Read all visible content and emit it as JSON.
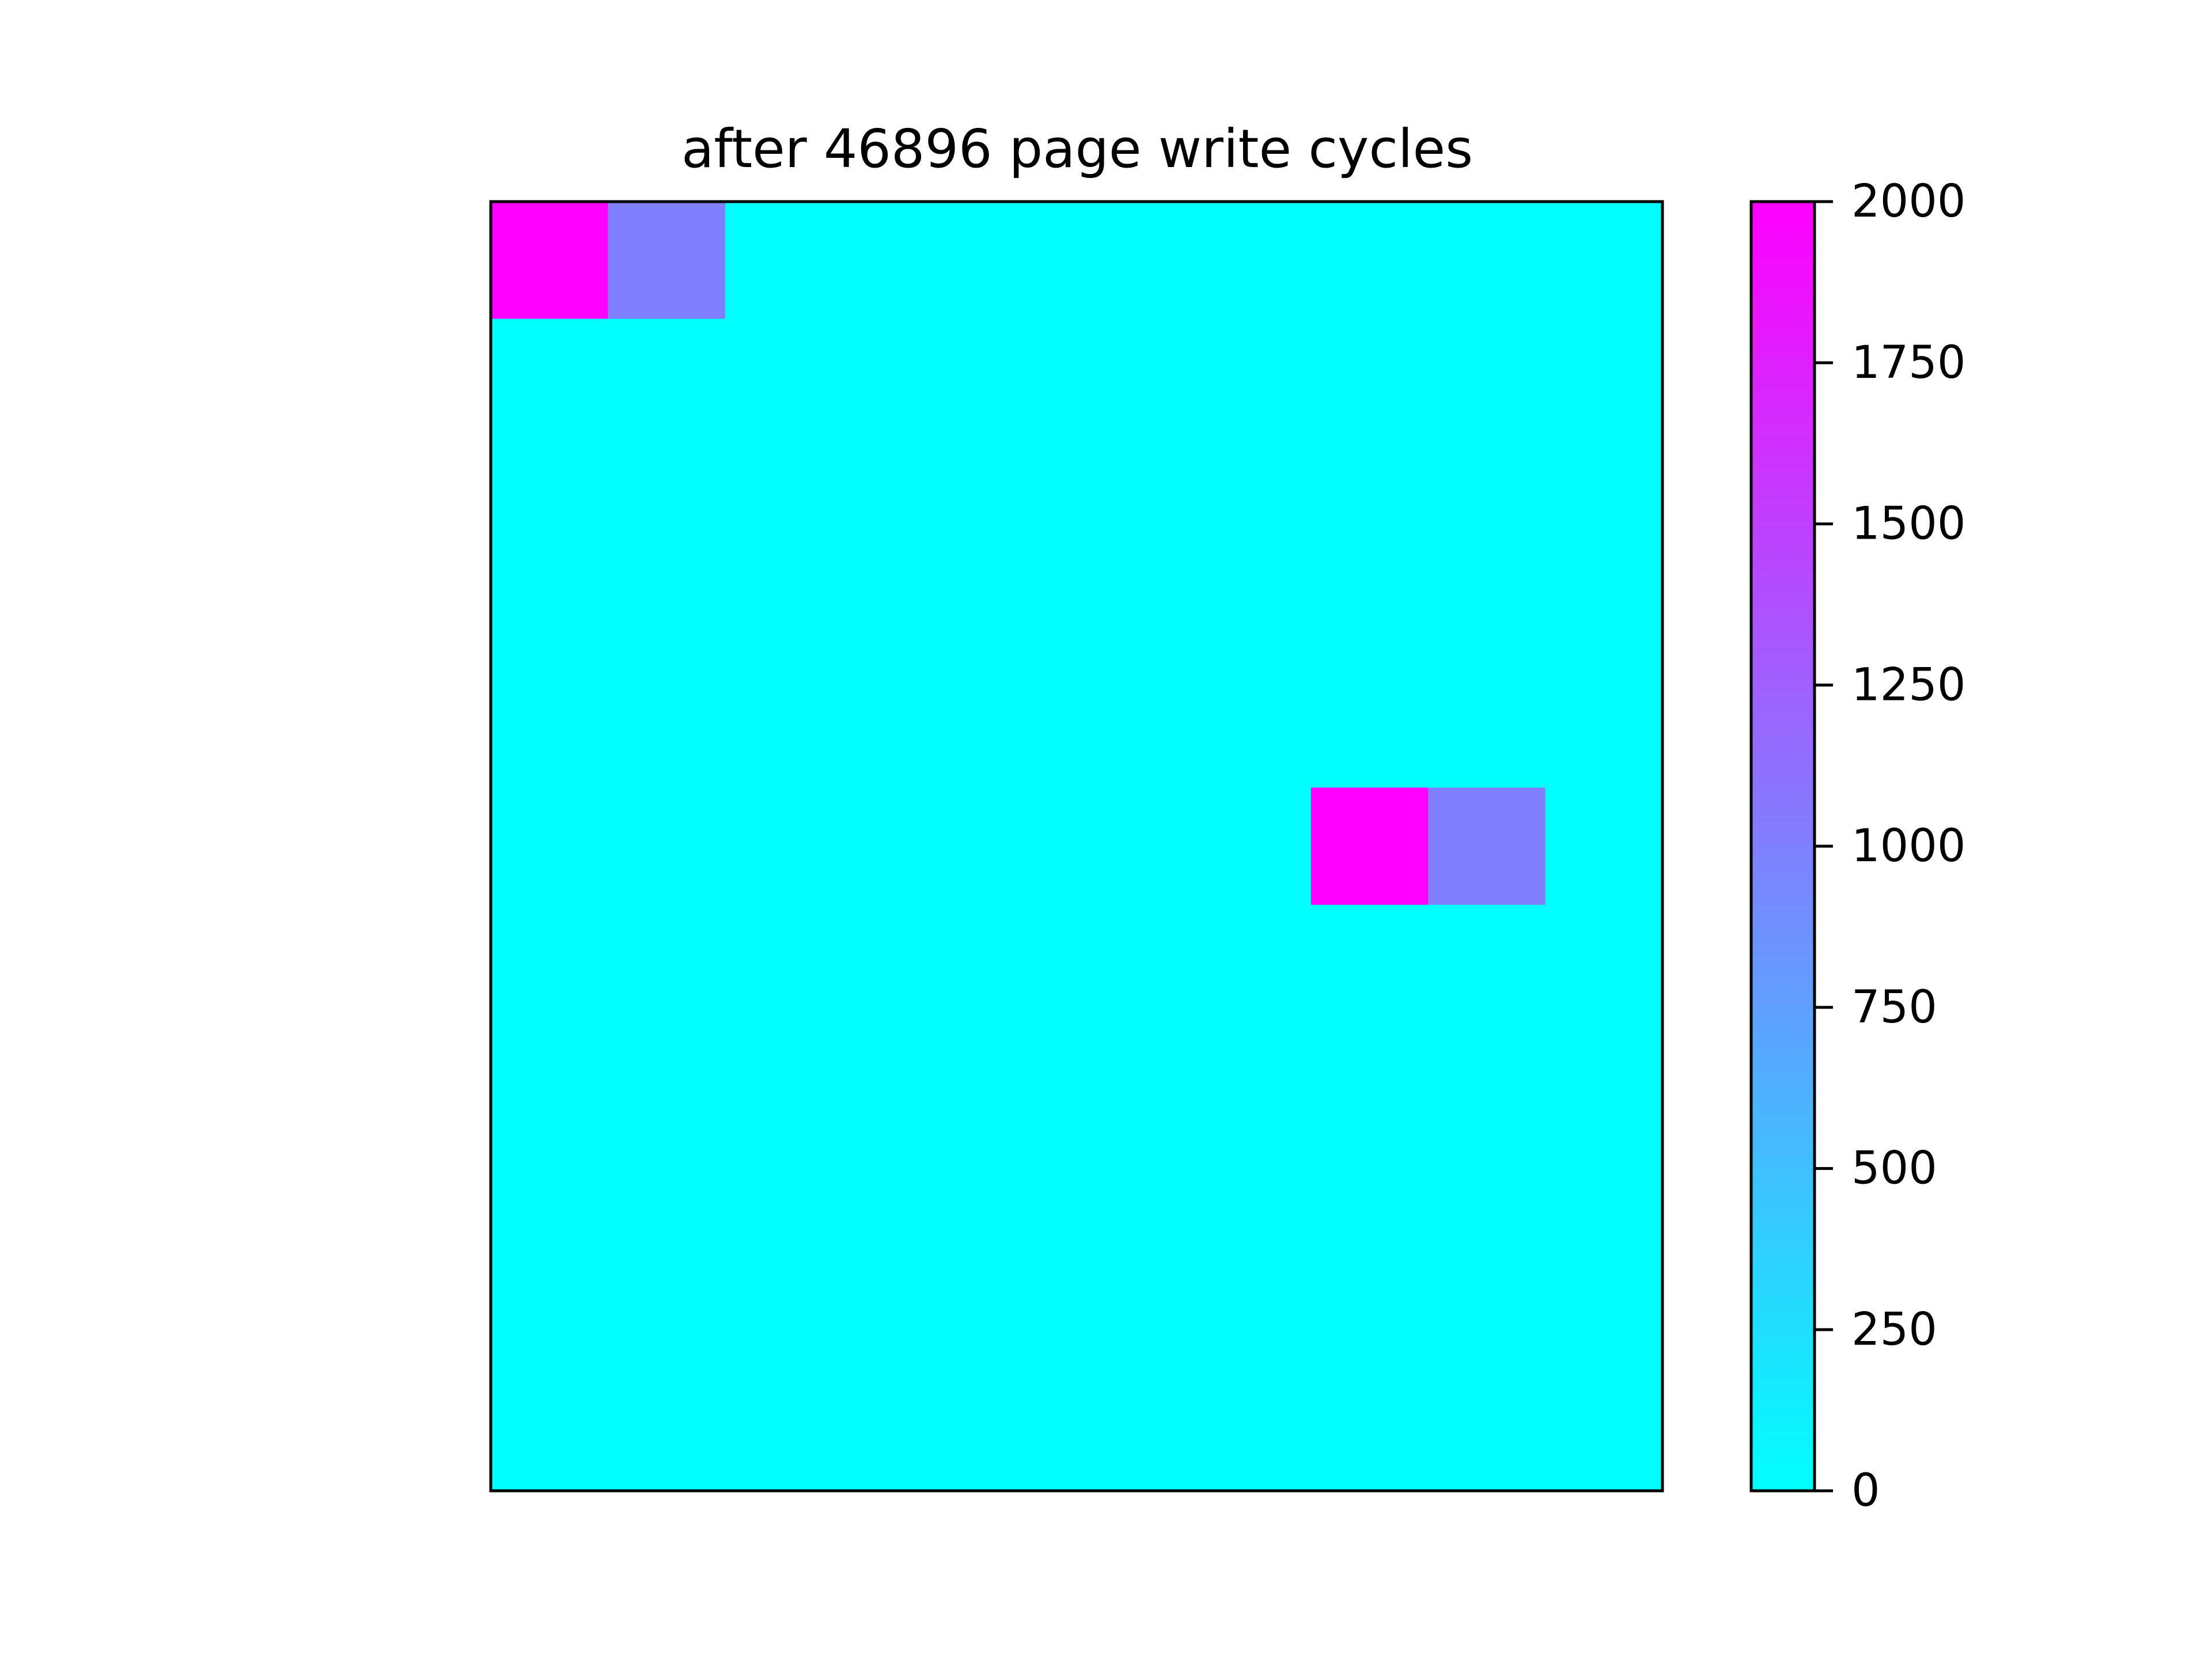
{
  "chart_data": {
    "type": "heatmap",
    "title": "after 46896 page write cycles",
    "xlabel": "",
    "ylabel": "",
    "rows": 11,
    "cols": 10,
    "values": [
      [
        2000,
        1000,
        0,
        0,
        0,
        0,
        0,
        0,
        0,
        0
      ],
      [
        0,
        0,
        0,
        0,
        0,
        0,
        0,
        0,
        0,
        0
      ],
      [
        0,
        0,
        0,
        0,
        0,
        0,
        0,
        0,
        0,
        0
      ],
      [
        0,
        0,
        0,
        0,
        0,
        0,
        0,
        0,
        0,
        0
      ],
      [
        0,
        0,
        0,
        0,
        0,
        0,
        0,
        0,
        0,
        0
      ],
      [
        0,
        0,
        0,
        0,
        0,
        0,
        0,
        2000,
        1000,
        0
      ],
      [
        0,
        0,
        0,
        0,
        0,
        0,
        0,
        0,
        0,
        0
      ],
      [
        0,
        0,
        0,
        0,
        0,
        0,
        0,
        0,
        0,
        0
      ],
      [
        0,
        0,
        0,
        0,
        0,
        0,
        0,
        0,
        0,
        0
      ],
      [
        0,
        0,
        0,
        0,
        0,
        0,
        0,
        0,
        0,
        0
      ],
      [
        0,
        0,
        0,
        0,
        0,
        0,
        0,
        0,
        0,
        0
      ]
    ],
    "colormap": "cool",
    "color_min": "#00ffff",
    "color_max": "#ff00ff",
    "vmin": 0,
    "vmax": 2000,
    "colorbar_ticks": [
      0,
      250,
      500,
      750,
      1000,
      1250,
      1500,
      1750,
      2000
    ],
    "colorbar_tick_labels": [
      "0",
      "250",
      "500",
      "750",
      "1000",
      "1250",
      "1500",
      "1750",
      "2000"
    ]
  }
}
